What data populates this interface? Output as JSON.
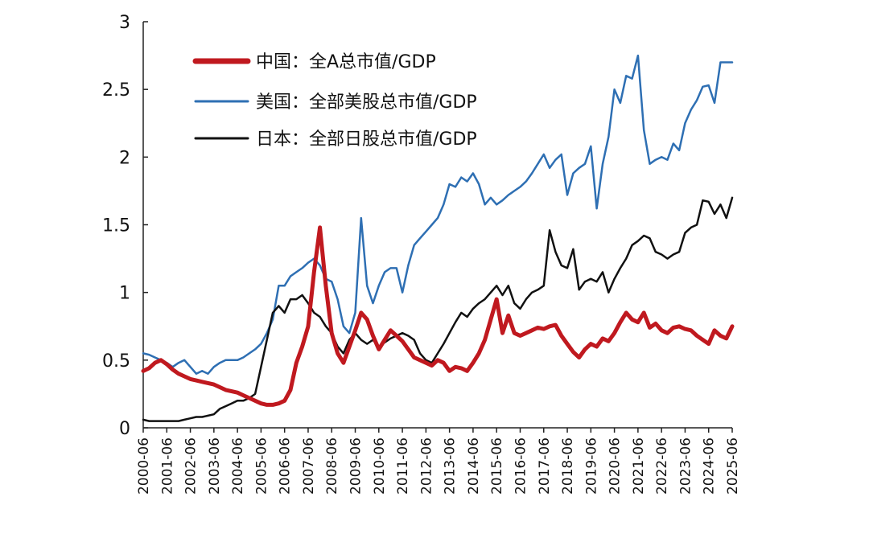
{
  "chart_data": {
    "type": "line",
    "title": "",
    "xlabel": "",
    "ylabel": "",
    "ylim": [
      0,
      3
    ],
    "yticks": [
      "0",
      "0.5",
      "1",
      "1.5",
      "2",
      "2.5",
      "3"
    ],
    "ytick_values": [
      0,
      0.5,
      1,
      1.5,
      2,
      2.5,
      3
    ],
    "xlim": [
      "2000-06",
      "2025-06"
    ],
    "xticks": [
      "2000-06",
      "2001-06",
      "2002-06",
      "2003-06",
      "2004-06",
      "2005-06",
      "2006-06",
      "2007-06",
      "2008-06",
      "2009-06",
      "2010-06",
      "2011-06",
      "2012-06",
      "2013-06",
      "2014-06",
      "2015-06",
      "2016-06",
      "2017-06",
      "2018-06",
      "2019-06",
      "2020-06",
      "2021-06",
      "2022-06",
      "2023-06",
      "2024-06",
      "2025-06"
    ],
    "grid": false,
    "legend_position": "top-left",
    "series": [
      {
        "name": "中国：全A总市值/GDP",
        "color": "#c0191f",
        "width": 5,
        "x": [
          "2000-06",
          "2000-09",
          "2000-12",
          "2001-03",
          "2001-06",
          "2001-09",
          "2001-12",
          "2002-03",
          "2002-06",
          "2002-09",
          "2002-12",
          "2003-03",
          "2003-06",
          "2003-09",
          "2003-12",
          "2004-03",
          "2004-06",
          "2004-09",
          "2004-12",
          "2005-03",
          "2005-06",
          "2005-09",
          "2005-12",
          "2006-03",
          "2006-06",
          "2006-09",
          "2006-12",
          "2007-03",
          "2007-06",
          "2007-09",
          "2007-12",
          "2008-03",
          "2008-06",
          "2008-09",
          "2008-12",
          "2009-03",
          "2009-06",
          "2009-09",
          "2009-12",
          "2010-03",
          "2010-06",
          "2010-09",
          "2010-12",
          "2011-03",
          "2011-06",
          "2011-09",
          "2011-12",
          "2012-03",
          "2012-06",
          "2012-09",
          "2012-12",
          "2013-03",
          "2013-06",
          "2013-09",
          "2013-12",
          "2014-03",
          "2014-06",
          "2014-09",
          "2014-12",
          "2015-03",
          "2015-06",
          "2015-09",
          "2015-12",
          "2016-03",
          "2016-06",
          "2016-09",
          "2016-12",
          "2017-03",
          "2017-06",
          "2017-09",
          "2017-12",
          "2018-03",
          "2018-06",
          "2018-09",
          "2018-12",
          "2019-03",
          "2019-06",
          "2019-09",
          "2019-12",
          "2020-03",
          "2020-06",
          "2020-09",
          "2020-12",
          "2021-03",
          "2021-06",
          "2021-09",
          "2021-12",
          "2022-03",
          "2022-06",
          "2022-09",
          "2022-12",
          "2023-03",
          "2023-06",
          "2023-09",
          "2023-12",
          "2024-03",
          "2024-06",
          "2024-09",
          "2024-12",
          "2025-03",
          "2025-06"
        ],
        "values": [
          0.42,
          0.44,
          0.48,
          0.5,
          0.47,
          0.43,
          0.4,
          0.38,
          0.36,
          0.35,
          0.34,
          0.33,
          0.32,
          0.3,
          0.28,
          0.27,
          0.26,
          0.24,
          0.22,
          0.2,
          0.18,
          0.17,
          0.17,
          0.18,
          0.2,
          0.28,
          0.48,
          0.6,
          0.75,
          1.15,
          1.48,
          1.05,
          0.7,
          0.55,
          0.48,
          0.6,
          0.72,
          0.85,
          0.8,
          0.68,
          0.58,
          0.65,
          0.72,
          0.68,
          0.64,
          0.58,
          0.52,
          0.5,
          0.48,
          0.46,
          0.5,
          0.48,
          0.42,
          0.45,
          0.44,
          0.42,
          0.48,
          0.55,
          0.65,
          0.8,
          0.95,
          0.7,
          0.83,
          0.7,
          0.68,
          0.7,
          0.72,
          0.74,
          0.73,
          0.75,
          0.76,
          0.68,
          0.62,
          0.56,
          0.52,
          0.58,
          0.62,
          0.6,
          0.66,
          0.64,
          0.7,
          0.78,
          0.85,
          0.8,
          0.78,
          0.85,
          0.74,
          0.77,
          0.72,
          0.7,
          0.74,
          0.75,
          0.73,
          0.72,
          0.68,
          0.65,
          0.62,
          0.72,
          0.68,
          0.66,
          0.75
        ]
      },
      {
        "name": "美国：全部美股总市值/GDP",
        "color": "#2e6fb3",
        "width": 2.5,
        "x": [
          "2000-06",
          "2000-09",
          "2000-12",
          "2001-03",
          "2001-06",
          "2001-09",
          "2001-12",
          "2002-03",
          "2002-06",
          "2002-09",
          "2002-12",
          "2003-03",
          "2003-06",
          "2003-09",
          "2003-12",
          "2004-03",
          "2004-06",
          "2004-09",
          "2004-12",
          "2005-03",
          "2005-06",
          "2005-09",
          "2005-12",
          "2006-03",
          "2006-06",
          "2006-09",
          "2006-12",
          "2007-03",
          "2007-06",
          "2007-09",
          "2007-12",
          "2008-03",
          "2008-06",
          "2008-09",
          "2008-12",
          "2009-03",
          "2009-06",
          "2009-09",
          "2009-12",
          "2010-03",
          "2010-06",
          "2010-09",
          "2010-12",
          "2011-03",
          "2011-06",
          "2011-09",
          "2011-12",
          "2012-03",
          "2012-06",
          "2012-09",
          "2012-12",
          "2013-03",
          "2013-06",
          "2013-09",
          "2013-12",
          "2014-03",
          "2014-06",
          "2014-09",
          "2014-12",
          "2015-03",
          "2015-06",
          "2015-09",
          "2015-12",
          "2016-03",
          "2016-06",
          "2016-09",
          "2016-12",
          "2017-03",
          "2017-06",
          "2017-09",
          "2017-12",
          "2018-03",
          "2018-06",
          "2018-09",
          "2018-12",
          "2019-03",
          "2019-06",
          "2019-09",
          "2019-12",
          "2020-03",
          "2020-06",
          "2020-09",
          "2020-12",
          "2021-03",
          "2021-06",
          "2021-09",
          "2021-12",
          "2022-03",
          "2022-06",
          "2022-09",
          "2022-12",
          "2023-03",
          "2023-06",
          "2023-09",
          "2023-12",
          "2024-03",
          "2024-06",
          "2024-09",
          "2024-12",
          "2025-03",
          "2025-06"
        ],
        "values": [
          0.55,
          0.54,
          0.52,
          0.5,
          0.48,
          0.45,
          0.48,
          0.5,
          0.45,
          0.4,
          0.42,
          0.4,
          0.45,
          0.48,
          0.5,
          0.5,
          0.5,
          0.52,
          0.55,
          0.58,
          0.62,
          0.7,
          0.8,
          1.05,
          1.05,
          1.12,
          1.15,
          1.18,
          1.22,
          1.25,
          1.2,
          1.1,
          1.08,
          0.95,
          0.75,
          0.7,
          0.85,
          1.55,
          1.05,
          0.92,
          1.05,
          1.15,
          1.18,
          1.18,
          1.0,
          1.2,
          1.35,
          1.4,
          1.45,
          1.5,
          1.55,
          1.65,
          1.8,
          1.78,
          1.85,
          1.82,
          1.88,
          1.8,
          1.65,
          1.7,
          1.65,
          1.68,
          1.72,
          1.75,
          1.78,
          1.82,
          1.88,
          1.95,
          2.02,
          1.92,
          1.98,
          2.02,
          1.72,
          1.88,
          1.92,
          1.95,
          2.08,
          1.62,
          1.95,
          2.15,
          2.5,
          2.4,
          2.6,
          2.58,
          2.75,
          2.2,
          1.95,
          1.98,
          2.0,
          1.98,
          2.1,
          2.05,
          2.25,
          2.35,
          2.42,
          2.52,
          2.53,
          2.4,
          2.7,
          2.7,
          2.7
        ]
      },
      {
        "name": "日本：全部日股总市值/GDP",
        "color": "#111111",
        "width": 2.5,
        "x": [
          "2000-06",
          "2000-09",
          "2000-12",
          "2001-03",
          "2001-06",
          "2001-09",
          "2001-12",
          "2002-03",
          "2002-06",
          "2002-09",
          "2002-12",
          "2003-03",
          "2003-06",
          "2003-09",
          "2003-12",
          "2004-03",
          "2004-06",
          "2004-09",
          "2004-12",
          "2005-03",
          "2005-06",
          "2005-09",
          "2005-12",
          "2006-03",
          "2006-06",
          "2006-09",
          "2006-12",
          "2007-03",
          "2007-06",
          "2007-09",
          "2007-12",
          "2008-03",
          "2008-06",
          "2008-09",
          "2008-12",
          "2009-03",
          "2009-06",
          "2009-09",
          "2009-12",
          "2010-03",
          "2010-06",
          "2010-09",
          "2010-12",
          "2011-03",
          "2011-06",
          "2011-09",
          "2011-12",
          "2012-03",
          "2012-06",
          "2012-09",
          "2012-12",
          "2013-03",
          "2013-06",
          "2013-09",
          "2013-12",
          "2014-03",
          "2014-06",
          "2014-09",
          "2014-12",
          "2015-03",
          "2015-06",
          "2015-09",
          "2015-12",
          "2016-03",
          "2016-06",
          "2016-09",
          "2016-12",
          "2017-03",
          "2017-06",
          "2017-09",
          "2017-12",
          "2018-03",
          "2018-06",
          "2018-09",
          "2018-12",
          "2019-03",
          "2019-06",
          "2019-09",
          "2019-12",
          "2020-03",
          "2020-06",
          "2020-09",
          "2020-12",
          "2021-03",
          "2021-06",
          "2021-09",
          "2021-12",
          "2022-03",
          "2022-06",
          "2022-09",
          "2022-12",
          "2023-03",
          "2023-06",
          "2023-09",
          "2023-12",
          "2024-03",
          "2024-06",
          "2024-09",
          "2024-12",
          "2025-03",
          "2025-06"
        ],
        "values": [
          0.06,
          0.05,
          0.05,
          0.05,
          0.05,
          0.05,
          0.05,
          0.06,
          0.07,
          0.08,
          0.08,
          0.09,
          0.1,
          0.14,
          0.16,
          0.18,
          0.2,
          0.2,
          0.22,
          0.25,
          0.45,
          0.65,
          0.85,
          0.9,
          0.85,
          0.95,
          0.95,
          0.98,
          0.92,
          0.85,
          0.82,
          0.75,
          0.7,
          0.6,
          0.55,
          0.65,
          0.7,
          0.65,
          0.62,
          0.65,
          0.6,
          0.63,
          0.66,
          0.68,
          0.7,
          0.68,
          0.65,
          0.55,
          0.5,
          0.48,
          0.55,
          0.62,
          0.7,
          0.78,
          0.85,
          0.82,
          0.88,
          0.92,
          0.95,
          1.0,
          1.05,
          0.98,
          1.05,
          0.92,
          0.88,
          0.95,
          1.0,
          1.02,
          1.05,
          1.46,
          1.3,
          1.2,
          1.18,
          1.32,
          1.02,
          1.08,
          1.1,
          1.08,
          1.15,
          1.0,
          1.1,
          1.18,
          1.25,
          1.35,
          1.38,
          1.42,
          1.4,
          1.3,
          1.28,
          1.25,
          1.28,
          1.3,
          1.44,
          1.48,
          1.5,
          1.68,
          1.67,
          1.58,
          1.65,
          1.55,
          1.7
        ]
      }
    ]
  }
}
